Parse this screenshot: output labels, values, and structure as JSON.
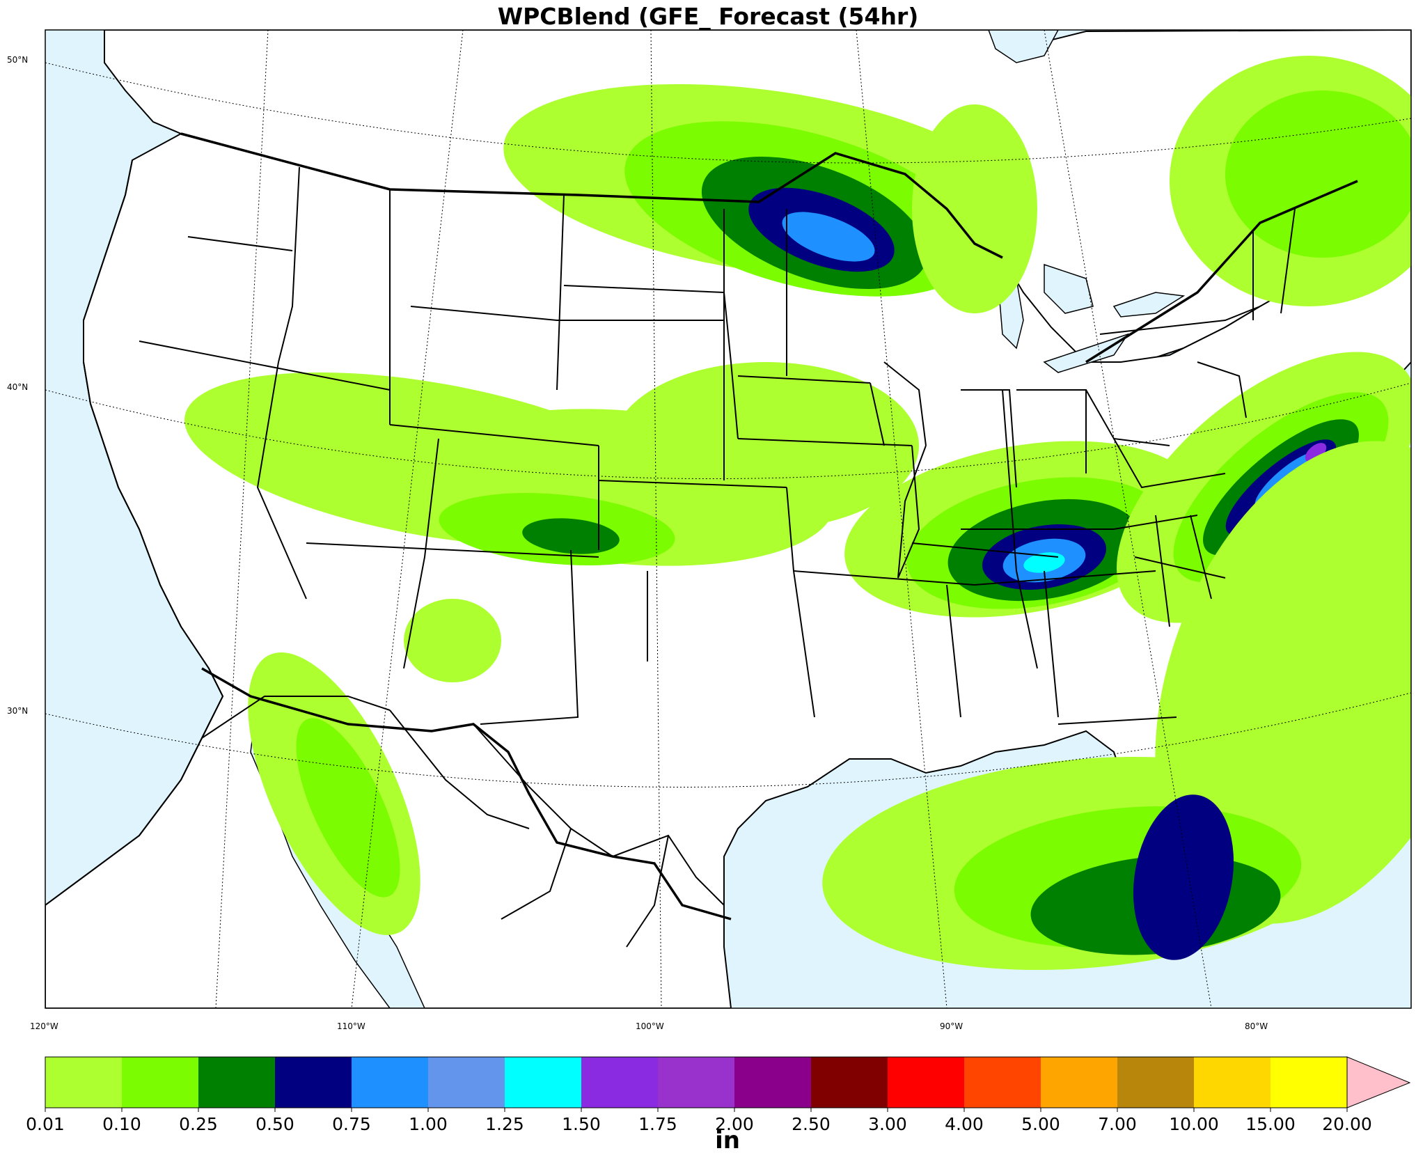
{
  "title": "WPCBlend (GFE_ Forecast (54hr)",
  "units": "in",
  "map": {
    "lat_labels": [
      "50°N",
      "40°N",
      "30°N"
    ],
    "lon_labels": [
      "120°W",
      "110°W",
      "100°W",
      "90°W",
      "80°W"
    ],
    "colors": {
      "ocean": "#dff4fd",
      "land": "#ffffff",
      "border": "#000000"
    }
  },
  "colorbar": {
    "ticks": [
      "0.01",
      "0.10",
      "0.25",
      "0.50",
      "0.75",
      "1.00",
      "1.25",
      "1.50",
      "1.75",
      "2.00",
      "2.50",
      "3.00",
      "4.00",
      "5.00",
      "7.00",
      "10.00",
      "15.00",
      "20.00"
    ],
    "colors": [
      "#adff2f",
      "#7cfc00",
      "#008000",
      "#000080",
      "#1e90ff",
      "#6495ed",
      "#00ffff",
      "#8a2be2",
      "#9932cc",
      "#8b008b",
      "#800000",
      "#ff0000",
      "#ff4500",
      "#ffa500",
      "#b8860b",
      "#ffd700",
      "#ffff00"
    ],
    "extend_color": "#ffc0cb"
  }
}
